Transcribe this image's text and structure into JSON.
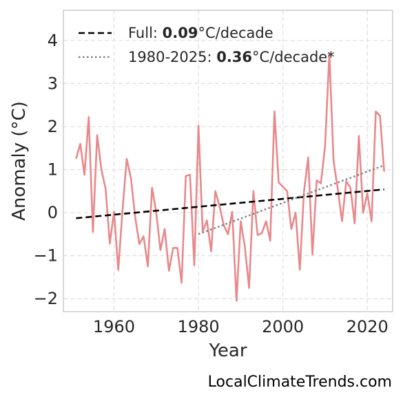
{
  "chart_data": {
    "type": "line",
    "xlabel": "Year",
    "ylabel": "Anomaly (°C)",
    "xlim": [
      1948,
      2026
    ],
    "ylim": [
      -2.3,
      4.7
    ],
    "xticks": [
      1960,
      1980,
      2000,
      2020
    ],
    "yticks": [
      -2,
      -1,
      0,
      1,
      2,
      3,
      4
    ],
    "ytick_labels": [
      "−2",
      "−1",
      "0",
      "1",
      "2",
      "3",
      "4"
    ],
    "grid": true,
    "legend_placement": "top-left",
    "series": [
      {
        "style": "solid",
        "color": "#e8888a",
        "x": [
          1951,
          1952,
          1953,
          1954,
          1955,
          1956,
          1957,
          1958,
          1959,
          1960,
          1961,
          1962,
          1963,
          1964,
          1965,
          1966,
          1967,
          1968,
          1969,
          1970,
          1971,
          1972,
          1973,
          1974,
          1975,
          1976,
          1977,
          1978,
          1979,
          1980,
          1981,
          1982,
          1983,
          1984,
          1985,
          1986,
          1987,
          1988,
          1989,
          1990,
          1991,
          1992,
          1993,
          1994,
          1995,
          1996,
          1997,
          1998,
          1999,
          2000,
          2001,
          2002,
          2003,
          2004,
          2005,
          2006,
          2007,
          2008,
          2009,
          2010,
          2011,
          2012,
          2013,
          2014,
          2015,
          2016,
          2017,
          2018,
          2019,
          2020,
          2021,
          2022,
          2023,
          2024
        ],
        "y": [
          1.25,
          1.6,
          0.88,
          2.22,
          -0.45,
          1.8,
          1.0,
          0.55,
          -0.72,
          0.02,
          -1.33,
          0.05,
          1.25,
          0.8,
          -0.1,
          -0.73,
          -0.55,
          -1.25,
          0.58,
          0.0,
          -0.87,
          -0.38,
          -1.35,
          -0.82,
          -0.82,
          -1.63,
          0.85,
          0.88,
          -1.23,
          2.02,
          -0.45,
          -0.18,
          -0.9,
          0.5,
          0.15,
          -0.3,
          -0.5,
          0.02,
          -2.05,
          -0.2,
          -0.8,
          -1.75,
          0.5,
          -0.52,
          -0.48,
          -0.2,
          -0.65,
          2.35,
          0.7,
          0.6,
          0.5,
          -0.38,
          0.0,
          -1.33,
          0.5,
          1.28,
          -0.97,
          0.75,
          0.68,
          1.55,
          3.7,
          1.2,
          0.55,
          -0.2,
          0.73,
          0.58,
          -0.25,
          1.78,
          0.0,
          0.45,
          -0.2,
          2.35,
          2.25,
          0.95
        ]
      },
      {
        "name": "Full: 0.09°C/decade",
        "style": "dashed",
        "color": "#000000",
        "x": [
          1951,
          2024
        ],
        "y": [
          -0.13,
          0.54
        ]
      },
      {
        "name": "1980-2025: 0.36°C/decade*",
        "style": "dotted",
        "color": "#808080",
        "x": [
          1980,
          2024
        ],
        "y": [
          -0.5,
          1.1
        ]
      }
    ],
    "legend": [
      {
        "prefix": "Full: ",
        "value": "0.09",
        "suffix": "°C/decade"
      },
      {
        "prefix": "1980-2025: ",
        "value": "0.36",
        "suffix": "°C/decade*"
      }
    ]
  },
  "footer": {
    "text": "LocalClimateTrends.com"
  },
  "colors": {
    "background": "#ffffff",
    "grid": "#dddddd",
    "frame": "#cccccc"
  }
}
